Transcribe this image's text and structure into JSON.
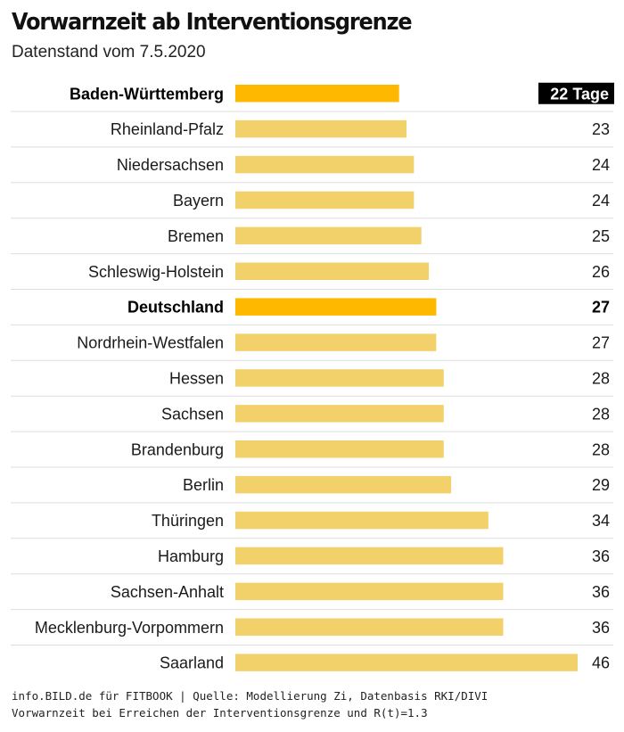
{
  "header": {
    "title": "Vorwarnzeit ab Interventionsgrenze",
    "subtitle": "Datenstand vom 7.5.2020"
  },
  "footer": {
    "line1": "info.BILD.de für FITBOOK | Quelle: Modellierung Zi, Datenbasis RKI/DIVI",
    "line2": "Vorwarnzeit bei Erreichen der Interventionsgrenze und R(t)=1.3"
  },
  "colors": {
    "bar": "#f2d16b",
    "bar_highlight": "#ffb800",
    "badge_bg": "#000000",
    "badge_text": "#ffffff",
    "divider": "#dddddd"
  },
  "chart_data": {
    "type": "bar",
    "orientation": "horizontal",
    "title": "Vorwarnzeit ab Interventionsgrenze",
    "subtitle": "Datenstand vom 7.5.2020",
    "unit": "Tage",
    "first_value_label": "22 Tage",
    "categories": [
      "Baden-Württemberg",
      "Rheinland-Pfalz",
      "Niedersachsen",
      "Bayern",
      "Bremen",
      "Schleswig-Holstein",
      "Deutschland",
      "Nordrhein-Westfalen",
      "Hessen",
      "Sachsen",
      "Brandenburg",
      "Berlin",
      "Thüringen",
      "Hamburg",
      "Sachsen-Anhalt",
      "Mecklenburg-Vorpommern",
      "Saarland"
    ],
    "values": [
      22,
      23,
      24,
      24,
      25,
      26,
      27,
      27,
      28,
      28,
      28,
      29,
      34,
      36,
      36,
      36,
      46
    ],
    "highlighted": [
      "Baden-Württemberg",
      "Deutschland"
    ],
    "xlim": [
      0,
      46
    ],
    "grid": false,
    "legend": "none"
  }
}
